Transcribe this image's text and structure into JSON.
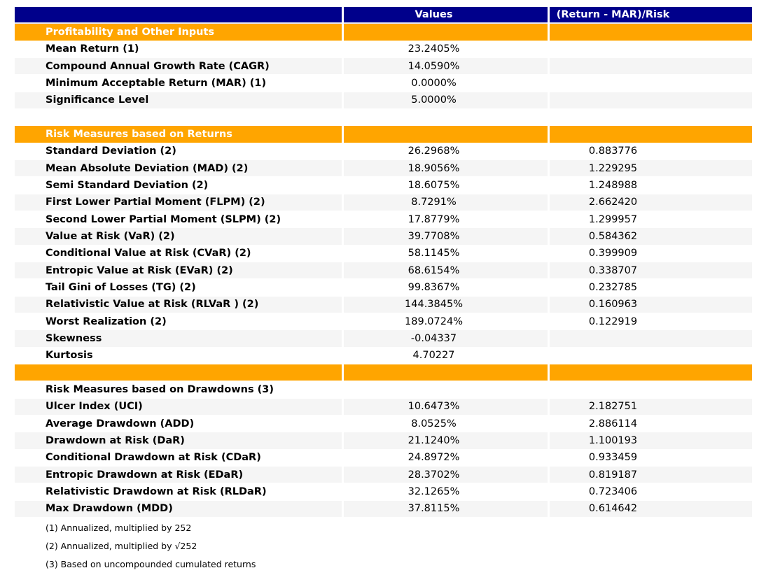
{
  "colors": {
    "header_navy": "#00008B",
    "section_orange": "#FFA500",
    "stripe_gray": "#F5F5F5",
    "header_text": "#FFFFFF",
    "body_text": "#000000"
  },
  "table": {
    "columns": [
      "",
      "Values",
      "(Return - MAR)/Risk"
    ],
    "rows": [
      {
        "kind": "columns",
        "label": "",
        "value": "Values",
        "ratio": "(Return - MAR)/Risk"
      },
      {
        "kind": "section",
        "label": "Profitability and Other Inputs",
        "value": "",
        "ratio": ""
      },
      {
        "kind": "data",
        "label": "Mean Return (1)",
        "value": "23.2405%",
        "ratio": ""
      },
      {
        "kind": "data",
        "label": "Compound Annual Growth Rate (CAGR)",
        "value": "14.0590%",
        "ratio": ""
      },
      {
        "kind": "data",
        "label": "Minimum Acceptable Return (MAR) (1)",
        "value": "0.0000%",
        "ratio": ""
      },
      {
        "kind": "data",
        "label": "Significance Level",
        "value": "5.0000%",
        "ratio": ""
      },
      {
        "kind": "spacer",
        "label": "",
        "value": "",
        "ratio": ""
      },
      {
        "kind": "section",
        "label": "Risk Measures based on Returns",
        "value": "",
        "ratio": ""
      },
      {
        "kind": "data",
        "label": "Standard Deviation (2)",
        "value": "26.2968%",
        "ratio": "0.883776"
      },
      {
        "kind": "data",
        "label": "Mean Absolute Deviation (MAD) (2)",
        "value": "18.9056%",
        "ratio": "1.229295"
      },
      {
        "kind": "data",
        "label": "Semi Standard Deviation (2)",
        "value": "18.6075%",
        "ratio": "1.248988"
      },
      {
        "kind": "data",
        "label": "First Lower Partial Moment (FLPM) (2)",
        "value": "8.7291%",
        "ratio": "2.662420"
      },
      {
        "kind": "data",
        "label": "Second Lower Partial Moment (SLPM) (2)",
        "value": "17.8779%",
        "ratio": "1.299957"
      },
      {
        "kind": "data",
        "label": "Value at Risk (VaR) (2)",
        "value": "39.7708%",
        "ratio": "0.584362"
      },
      {
        "kind": "data",
        "label": "Conditional Value at Risk (CVaR) (2)",
        "value": "58.1145%",
        "ratio": "0.399909"
      },
      {
        "kind": "data",
        "label": "Entropic Value at Risk (EVaR) (2)",
        "value": "68.6154%",
        "ratio": "0.338707"
      },
      {
        "kind": "data",
        "label": "Tail Gini of Losses (TG) (2)",
        "value": "99.8367%",
        "ratio": "0.232785"
      },
      {
        "kind": "data",
        "label": "Relativistic Value at Risk (RLVaR ) (2)",
        "value": "144.3845%",
        "ratio": "0.160963"
      },
      {
        "kind": "data",
        "label": "Worst Realization (2)",
        "value": "189.0724%",
        "ratio": "0.122919"
      },
      {
        "kind": "data",
        "label": "Skewness",
        "value": "-0.04337",
        "ratio": ""
      },
      {
        "kind": "data",
        "label": "Kurtosis",
        "value": "4.70227",
        "ratio": ""
      },
      {
        "kind": "section",
        "label": "",
        "value": "",
        "ratio": ""
      },
      {
        "kind": "plain-section",
        "label": "Risk Measures based on Drawdowns (3)",
        "value": "",
        "ratio": ""
      },
      {
        "kind": "data",
        "label": "Ulcer Index (UCI)",
        "value": "10.6473%",
        "ratio": "2.182751"
      },
      {
        "kind": "data",
        "label": "Average Drawdown (ADD)",
        "value": "8.0525%",
        "ratio": "2.886114"
      },
      {
        "kind": "data",
        "label": "Drawdown at Risk (DaR)",
        "value": "21.1240%",
        "ratio": "1.100193"
      },
      {
        "kind": "data",
        "label": "Conditional Drawdown at Risk (CDaR)",
        "value": "24.8972%",
        "ratio": "0.933459"
      },
      {
        "kind": "data",
        "label": "Entropic Drawdown at Risk (EDaR)",
        "value": "28.3702%",
        "ratio": "0.819187"
      },
      {
        "kind": "data",
        "label": "Relativistic Drawdown at Risk (RLDaR)",
        "value": "32.1265%",
        "ratio": "0.723406"
      },
      {
        "kind": "data",
        "label": "Max Drawdown (MDD)",
        "value": "37.8115%",
        "ratio": "0.614642"
      }
    ]
  },
  "footnotes": [
    "(1) Annualized, multiplied by 252",
    "(2) Annualized, multiplied by √252",
    "(3) Based on uncompounded cumulated returns"
  ]
}
